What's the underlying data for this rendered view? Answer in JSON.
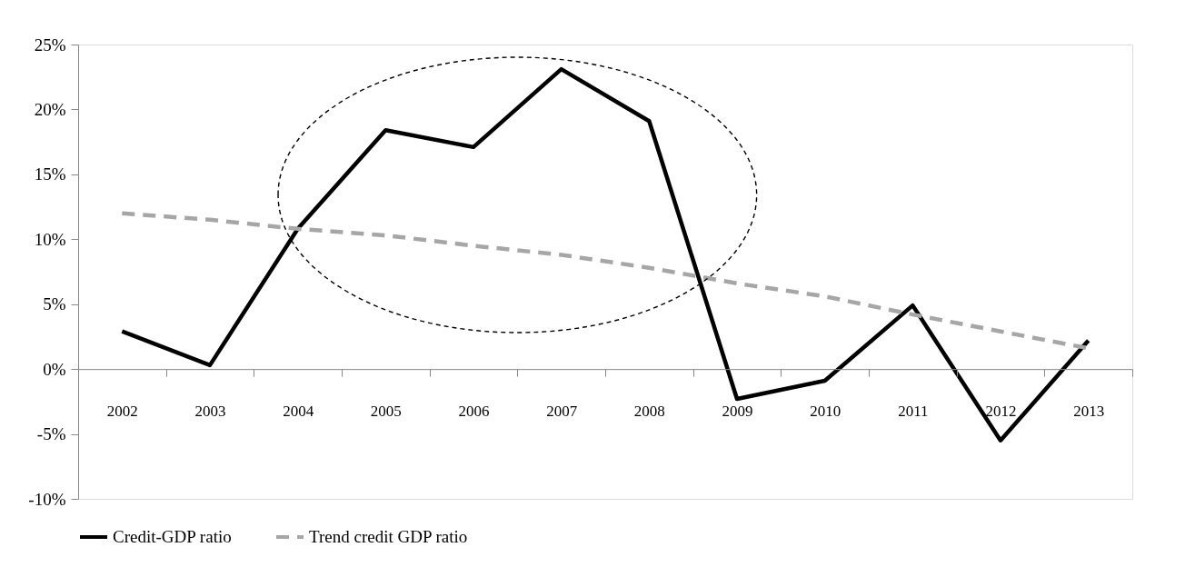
{
  "chart_data": {
    "type": "line",
    "categories": [
      "2002",
      "2003",
      "2004",
      "2005",
      "2006",
      "2007",
      "2008",
      "2009",
      "2010",
      "2011",
      "2012",
      "2013"
    ],
    "series": [
      {
        "name": "Credit-GDP ratio",
        "color": "#000000",
        "line_style": "solid",
        "values": [
          2.9,
          0.3,
          10.8,
          18.4,
          17.1,
          23.1,
          19.1,
          -2.3,
          -0.9,
          4.9,
          -5.5,
          2.2
        ]
      },
      {
        "name": "Trend credit GDP ratio",
        "color": "#a6a6a6",
        "line_style": "dashed",
        "values": [
          12.0,
          11.5,
          10.8,
          10.3,
          9.5,
          8.8,
          7.8,
          6.6,
          5.6,
          4.2,
          2.9,
          1.6
        ]
      }
    ],
    "ylim": [
      -10,
      25
    ],
    "yticks": [
      {
        "value": -10,
        "label": "-10%"
      },
      {
        "value": -5,
        "label": "-5%"
      },
      {
        "value": 0,
        "label": "0%"
      },
      {
        "value": 5,
        "label": "5%"
      },
      {
        "value": 10,
        "label": "10%"
      },
      {
        "value": 15,
        "label": "15%"
      },
      {
        "value": 20,
        "label": "20%"
      },
      {
        "value": 25,
        "label": "25%"
      }
    ],
    "grid": false,
    "legend": "bottom",
    "marker": "none"
  }
}
